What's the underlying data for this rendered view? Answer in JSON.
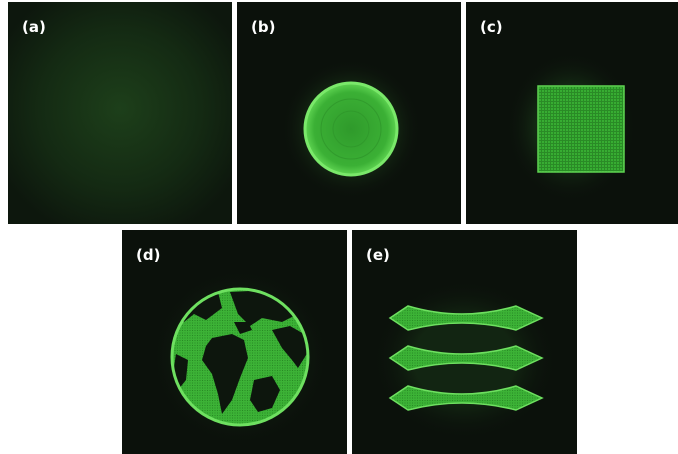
{
  "panels": [
    {
      "label": "(a)",
      "content": "diffuse-glow"
    },
    {
      "label": "(b)",
      "content": "circle"
    },
    {
      "label": "(c)",
      "content": "square"
    },
    {
      "label": "(d)",
      "content": "globe"
    },
    {
      "label": "(e)",
      "content": "bowtie-stack"
    }
  ],
  "colors": {
    "background": "#0b110b",
    "pattern": "#3fbf3a",
    "pattern_bright": "#6ee060",
    "label": "#ffffff"
  }
}
